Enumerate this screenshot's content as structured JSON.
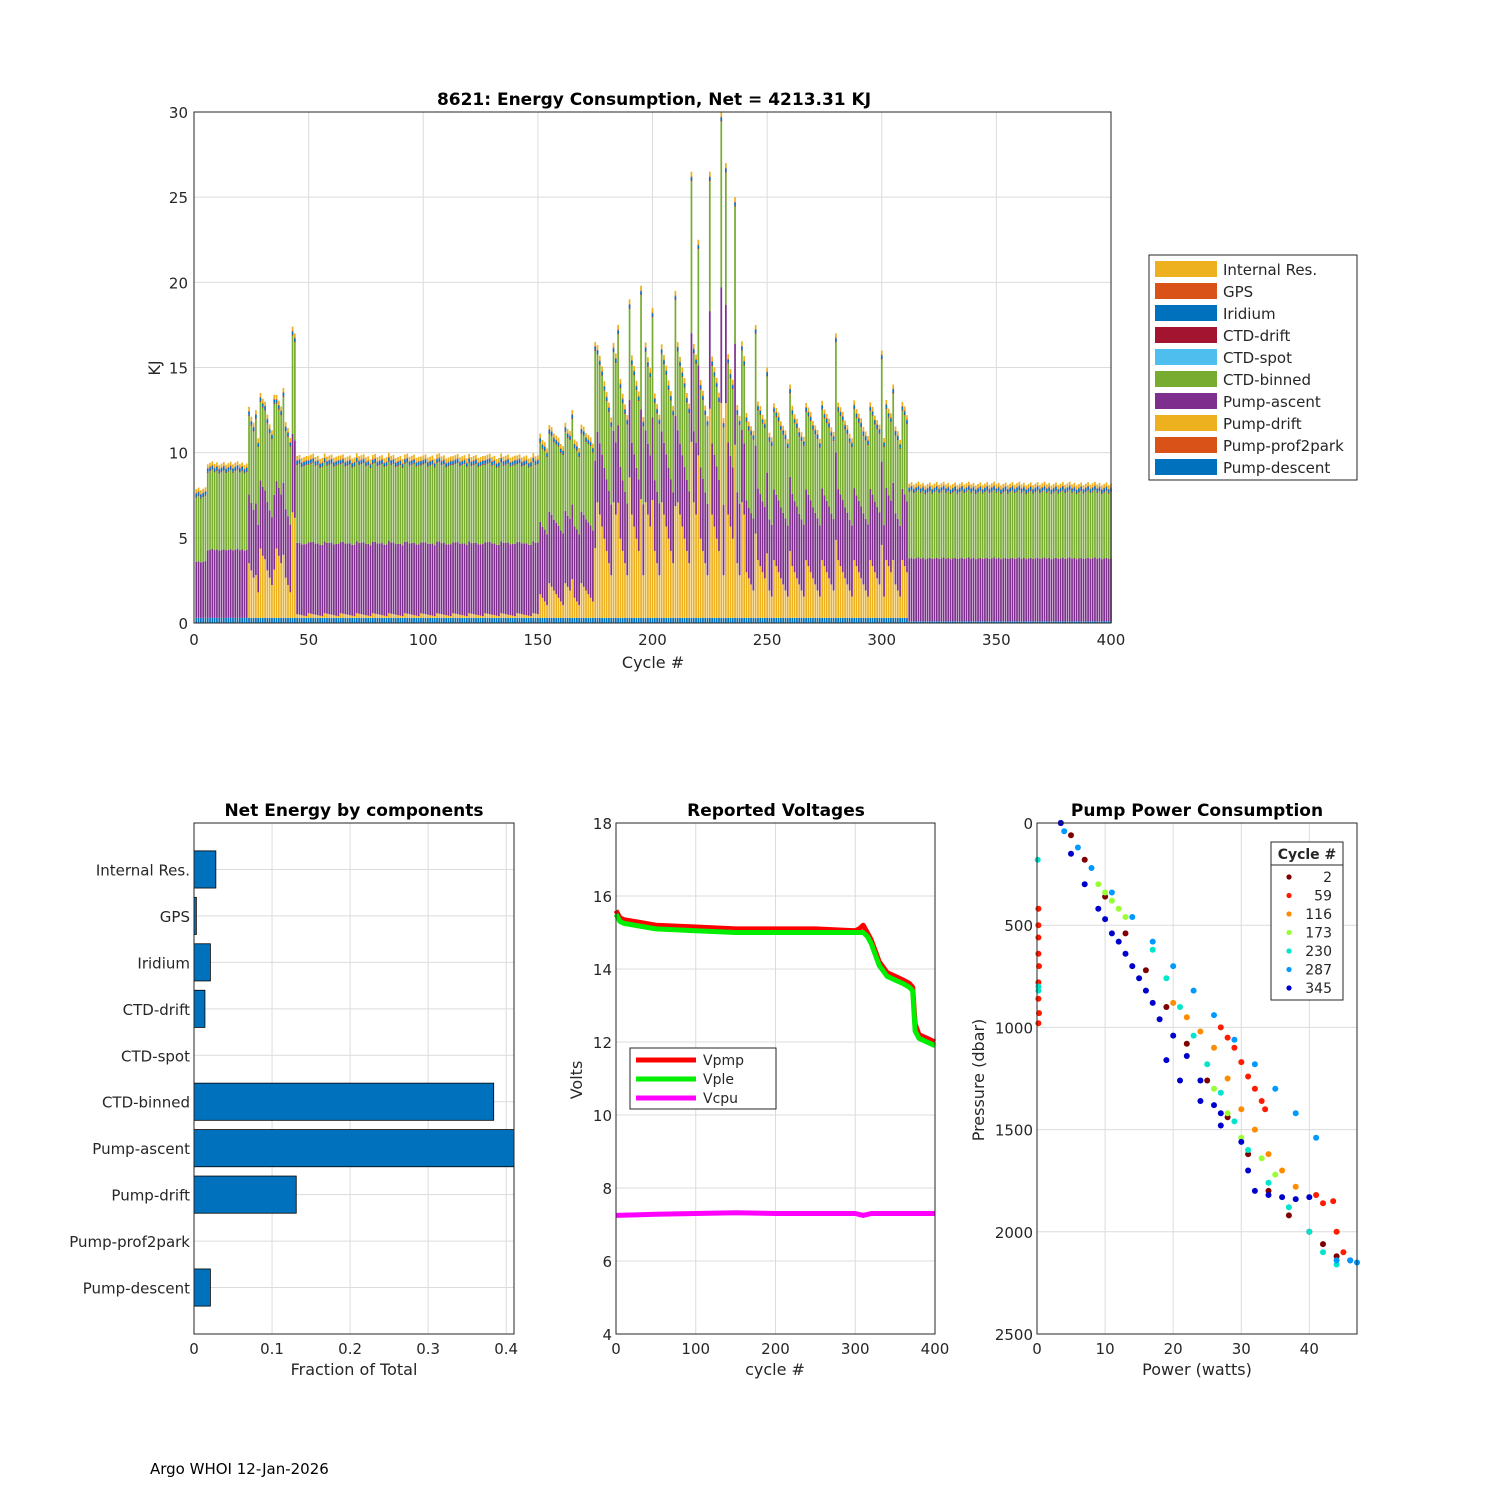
{
  "footer": "Argo WHOI 12-Jan-2026",
  "colors": {
    "pump_descent": "#0072BD",
    "pump_prof2park": "#D95319",
    "pump_drift": "#EDB120",
    "pump_ascent": "#7E2F8E",
    "ctd_binned": "#77AC30",
    "ctd_spot": "#4DBEEE",
    "ctd_drift": "#A2142F",
    "iridium": "#0072BD",
    "gps": "#D95319",
    "internal_res": "#EDB120",
    "bar": "#0072BD",
    "vpmp": "#FF0000",
    "vple": "#00EE00",
    "vcpu": "#FF00FF",
    "grid": "#dcdcdc",
    "axis": "#262626"
  },
  "chart_data": [
    {
      "type": "bar",
      "stacked": true,
      "title": "8621: Energy Consumption,  Net = 4213.31 KJ",
      "xlabel": "Cycle #",
      "ylabel": "KJ",
      "xlim": [
        0,
        400
      ],
      "ylim": [
        0,
        30
      ],
      "xticks": [
        0,
        50,
        100,
        150,
        200,
        250,
        300,
        350,
        400
      ],
      "yticks": [
        0,
        5,
        10,
        15,
        20,
        25,
        30
      ],
      "grid": true,
      "legend_position": "outside-right",
      "legend": [
        "Internal Res.",
        "GPS",
        "Iridium",
        "CTD-drift",
        "CTD-spot",
        "CTD-binned",
        "Pump-ascent",
        "Pump-drift",
        "Pump-prof2park",
        "Pump-descent"
      ],
      "segments": [
        {
          "cycles": [
            1,
            5
          ],
          "descent": 0.3,
          "ascent": 3.3,
          "drift": 0,
          "binned": 3.8,
          "top": 0.35
        },
        {
          "cycles": [
            6,
            23
          ],
          "descent": 0.3,
          "ascent": 4.0,
          "drift": 0,
          "binned": 4.6,
          "top": 0.35
        },
        {
          "cycles": [
            24,
            44
          ],
          "descent": 0.3,
          "ascent": 4.0,
          "drift": 3.0,
          "binned": 4.6,
          "top": 0.4
        },
        {
          "cycles": [
            45,
            150
          ],
          "descent": 0.3,
          "ascent": 4.2,
          "drift": 0.2,
          "binned": 4.6,
          "top": 0.4
        },
        {
          "cycles": [
            151,
            175
          ],
          "descent": 0.3,
          "ascent": 4.2,
          "drift": 1.5,
          "binned": 4.6,
          "top": 0.4
        },
        {
          "cycles": [
            176,
            240
          ],
          "descent": 0.3,
          "ascent": 4.2,
          "drift": 5.0,
          "binned": 4.6,
          "top": 0.45
        },
        {
          "cycles": [
            241,
            311
          ],
          "descent": 0.3,
          "ascent": 4.2,
          "drift": 2.5,
          "binned": 4.6,
          "top": 0.4
        },
        {
          "cycles": [
            312,
            400
          ],
          "descent": 0.1,
          "ascent": 3.7,
          "drift": 0,
          "binned": 3.9,
          "top": 0.35
        }
      ],
      "peaks": [
        {
          "cycle": 43,
          "total": 17.4
        },
        {
          "cycle": 44,
          "total": 17.0
        },
        {
          "cycle": 27,
          "total": 12.5
        },
        {
          "cycle": 31,
          "total": 13.0
        },
        {
          "cycle": 35,
          "total": 13.4
        },
        {
          "cycle": 39,
          "total": 13.8
        },
        {
          "cycle": 165,
          "total": 12.5
        },
        {
          "cycle": 175,
          "total": 16.5
        },
        {
          "cycle": 185,
          "total": 17.5
        },
        {
          "cycle": 190,
          "total": 19.0
        },
        {
          "cycle": 195,
          "total": 19.8
        },
        {
          "cycle": 200,
          "total": 18.5
        },
        {
          "cycle": 210,
          "total": 19.5
        },
        {
          "cycle": 217,
          "total": 26.5
        },
        {
          "cycle": 220,
          "total": 22.5
        },
        {
          "cycle": 225,
          "total": 26.5
        },
        {
          "cycle": 230,
          "total": 30.0
        },
        {
          "cycle": 232,
          "total": 27.0
        },
        {
          "cycle": 236,
          "total": 25.0
        },
        {
          "cycle": 245,
          "total": 17.5
        },
        {
          "cycle": 250,
          "total": 15.0
        },
        {
          "cycle": 260,
          "total": 14.0
        },
        {
          "cycle": 280,
          "total": 17.0
        },
        {
          "cycle": 300,
          "total": 16.0
        },
        {
          "cycle": 305,
          "total": 14.0
        }
      ]
    },
    {
      "type": "bar",
      "orientation": "horizontal",
      "title": "Net Energy by components",
      "xlabel": "Fraction of Total",
      "ylabel": "",
      "xlim": [
        0,
        0.41
      ],
      "xticks": [
        0,
        0.1,
        0.2,
        0.3,
        0.4
      ],
      "xtick_labels": [
        "0",
        "0.1",
        "0.2",
        "0.3",
        "0.4"
      ],
      "grid": true,
      "categories": [
        "Internal Res.",
        "GPS",
        "Iridium",
        "CTD-drift",
        "CTD-spot",
        "CTD-binned",
        "Pump-ascent",
        "Pump-drift",
        "Pump-prof2park",
        "Pump-descent"
      ],
      "values": [
        0.028,
        0.003,
        0.021,
        0.014,
        0.0,
        0.384,
        0.41,
        0.131,
        0.0,
        0.021
      ]
    },
    {
      "type": "line",
      "title": "Reported Voltages",
      "xlabel": "cycle #",
      "ylabel": "Volts",
      "xlim": [
        0,
        400
      ],
      "ylim": [
        4,
        18
      ],
      "xticks": [
        0,
        100,
        200,
        300,
        400
      ],
      "yticks": [
        4,
        6,
        8,
        10,
        12,
        14,
        16,
        18
      ],
      "grid": true,
      "legend_position": "middle-left",
      "series": [
        {
          "name": "Vpmp",
          "x": [
            0,
            5,
            10,
            50,
            100,
            150,
            200,
            250,
            300,
            305,
            310,
            315,
            320,
            330,
            340,
            350,
            360,
            368,
            372,
            375,
            380,
            390,
            400
          ],
          "y": [
            15.6,
            15.4,
            15.35,
            15.2,
            15.15,
            15.1,
            15.1,
            15.1,
            15.05,
            15.1,
            15.2,
            15.0,
            14.8,
            14.2,
            13.9,
            13.8,
            13.7,
            13.6,
            13.5,
            12.5,
            12.2,
            12.1,
            12.0
          ]
        },
        {
          "name": "Vple",
          "x": [
            0,
            5,
            10,
            50,
            100,
            150,
            200,
            250,
            300,
            305,
            310,
            315,
            320,
            330,
            340,
            350,
            360,
            368,
            372,
            375,
            380,
            390,
            400
          ],
          "y": [
            15.5,
            15.3,
            15.25,
            15.1,
            15.05,
            15.0,
            15.0,
            15.0,
            15.0,
            15.0,
            15.0,
            14.9,
            14.7,
            14.1,
            13.8,
            13.7,
            13.6,
            13.5,
            13.4,
            12.3,
            12.1,
            12.0,
            11.9
          ]
        },
        {
          "name": "Vcpu",
          "x": [
            0,
            50,
            100,
            150,
            200,
            250,
            300,
            310,
            320,
            350,
            400
          ],
          "y": [
            7.25,
            7.28,
            7.3,
            7.32,
            7.3,
            7.3,
            7.3,
            7.25,
            7.3,
            7.3,
            7.3
          ]
        }
      ]
    },
    {
      "type": "scatter",
      "title": "Pump Power Consumption",
      "xlabel": "Power (watts)",
      "ylabel": "Pressure (dbar)",
      "xlim": [
        0,
        47
      ],
      "ylim": [
        0,
        2500
      ],
      "y_reversed": true,
      "xticks": [
        0,
        10,
        20,
        30,
        40
      ],
      "yticks": [
        0,
        500,
        1000,
        1500,
        2000,
        2500
      ],
      "grid": true,
      "legend_title": "Cycle #",
      "legend_position": "top-right",
      "series": [
        {
          "name": "2",
          "color": "#7F0000",
          "points": [
            [
              3.5,
              0
            ],
            [
              5,
              60
            ],
            [
              7,
              180
            ],
            [
              10,
              360
            ],
            [
              13,
              540
            ],
            [
              16,
              720
            ],
            [
              19,
              900
            ],
            [
              22,
              1080
            ],
            [
              25,
              1260
            ],
            [
              28,
              1440
            ],
            [
              31,
              1620
            ],
            [
              34,
              1800
            ],
            [
              37,
              1920
            ],
            [
              40,
              2000
            ],
            [
              42,
              2060
            ],
            [
              44,
              2120
            ],
            [
              46,
              2140
            ]
          ]
        },
        {
          "name": "59",
          "color": "#FF1A00",
          "points": [
            [
              0.2,
              420
            ],
            [
              0.2,
              500
            ],
            [
              0.2,
              560
            ],
            [
              0.2,
              640
            ],
            [
              0.3,
              700
            ],
            [
              0.2,
              780
            ],
            [
              0.2,
              860
            ],
            [
              0.3,
              930
            ],
            [
              0.2,
              980
            ],
            [
              27,
              1000
            ],
            [
              28,
              1050
            ],
            [
              29,
              1100
            ],
            [
              30,
              1170
            ],
            [
              31,
              1240
            ],
            [
              32,
              1300
            ],
            [
              33,
              1360
            ],
            [
              33.5,
              1400
            ],
            [
              41,
              1820
            ],
            [
              42,
              1860
            ],
            [
              43.5,
              1850
            ],
            [
              44,
              2000
            ],
            [
              45,
              2100
            ]
          ]
        },
        {
          "name": "116",
          "color": "#FF8C00",
          "points": [
            [
              20,
              880
            ],
            [
              22,
              950
            ],
            [
              24,
              1020
            ],
            [
              26,
              1100
            ],
            [
              28,
              1250
            ],
            [
              30,
              1400
            ],
            [
              32,
              1500
            ],
            [
              34,
              1620
            ],
            [
              36,
              1700
            ],
            [
              38,
              1780
            ]
          ]
        },
        {
          "name": "173",
          "color": "#99FF33",
          "points": [
            [
              9,
              300
            ],
            [
              10,
              340
            ],
            [
              11,
              380
            ],
            [
              12,
              420
            ],
            [
              13,
              460
            ],
            [
              26,
              1300
            ],
            [
              28,
              1420
            ],
            [
              30,
              1540
            ],
            [
              33,
              1640
            ],
            [
              35,
              1720
            ]
          ]
        },
        {
          "name": "230",
          "color": "#00E5CC",
          "points": [
            [
              0.1,
              180
            ],
            [
              0.2,
              800
            ],
            [
              0.2,
              820
            ],
            [
              17,
              620
            ],
            [
              19,
              760
            ],
            [
              21,
              900
            ],
            [
              23,
              1040
            ],
            [
              25,
              1180
            ],
            [
              27,
              1320
            ],
            [
              29,
              1460
            ],
            [
              31,
              1600
            ],
            [
              34,
              1760
            ],
            [
              37,
              1880
            ],
            [
              40,
              2000
            ],
            [
              42,
              2100
            ],
            [
              44,
              2160
            ]
          ]
        },
        {
          "name": "287",
          "color": "#0099FF",
          "points": [
            [
              4,
              40
            ],
            [
              6,
              120
            ],
            [
              8,
              220
            ],
            [
              11,
              340
            ],
            [
              14,
              460
            ],
            [
              17,
              580
            ],
            [
              20,
              700
            ],
            [
              23,
              820
            ],
            [
              26,
              940
            ],
            [
              29,
              1060
            ],
            [
              32,
              1180
            ],
            [
              35,
              1300
            ],
            [
              38,
              1420
            ],
            [
              41,
              1540
            ],
            [
              44,
              2140
            ],
            [
              46,
              2140
            ],
            [
              47,
              2150
            ]
          ]
        },
        {
          "name": "345",
          "color": "#0000CC",
          "points": [
            [
              3.5,
              0
            ],
            [
              5,
              150
            ],
            [
              7,
              300
            ],
            [
              9,
              420
            ],
            [
              10,
              470
            ],
            [
              11,
              540
            ],
            [
              12,
              580
            ],
            [
              13,
              640
            ],
            [
              14,
              700
            ],
            [
              15,
              760
            ],
            [
              16,
              820
            ],
            [
              17,
              880
            ],
            [
              18,
              960
            ],
            [
              20,
              1040
            ],
            [
              22,
              1140
            ],
            [
              24,
              1260
            ],
            [
              26,
              1380
            ],
            [
              27,
              1420
            ],
            [
              19,
              1160
            ],
            [
              21,
              1260
            ],
            [
              24,
              1360
            ],
            [
              27,
              1480
            ],
            [
              30,
              1560
            ],
            [
              31,
              1700
            ],
            [
              32,
              1800
            ],
            [
              34,
              1820
            ],
            [
              36,
              1830
            ],
            [
              38,
              1840
            ],
            [
              40,
              1830
            ]
          ]
        }
      ]
    }
  ]
}
